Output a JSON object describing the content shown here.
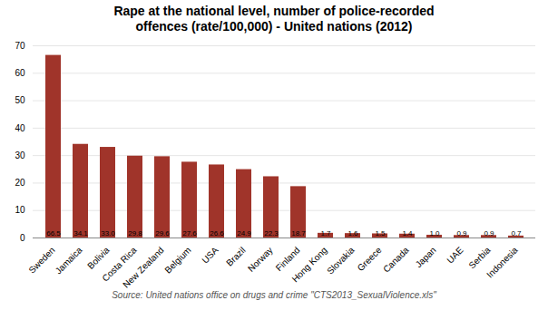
{
  "chart_data": {
    "type": "bar",
    "title": "Rape at the national level, number of police-recorded\noffences (rate/100,000) - United nations (2012)",
    "source": "Source: United nations office on drugs and crime \"CTS2013_SexualViolence.xls\"",
    "categories": [
      "Sweden",
      "Jamaica",
      "Bolivia",
      "Costa Rica",
      "New Zealand",
      "Belgium",
      "USA",
      "Brazil",
      "Norway",
      "Finland",
      "Hong Kong",
      "Slovakia",
      "Greece",
      "Canada",
      "Japan",
      "UAE",
      "Serbia",
      "Indonesia"
    ],
    "values": [
      66.5,
      34.1,
      33.0,
      29.8,
      29.6,
      27.6,
      26.6,
      24.9,
      22.3,
      18.7,
      1.7,
      1.6,
      1.5,
      1.4,
      1.0,
      0.9,
      0.9,
      0.7
    ],
    "value_labels": [
      "66.5",
      "34.1",
      "33.0",
      "29.8",
      "29.6",
      "27.6",
      "26.6",
      "24.9",
      "22.3",
      "18.7",
      "1.7",
      "1.6",
      "1.5",
      "1.4",
      "1.0",
      "0.9",
      "0.9",
      "0.7"
    ],
    "data_labels": true,
    "color": "#A0342A",
    "ylim": [
      0,
      70
    ],
    "yticks": [
      0,
      10,
      20,
      30,
      40,
      50,
      60,
      70
    ],
    "grid": true
  }
}
